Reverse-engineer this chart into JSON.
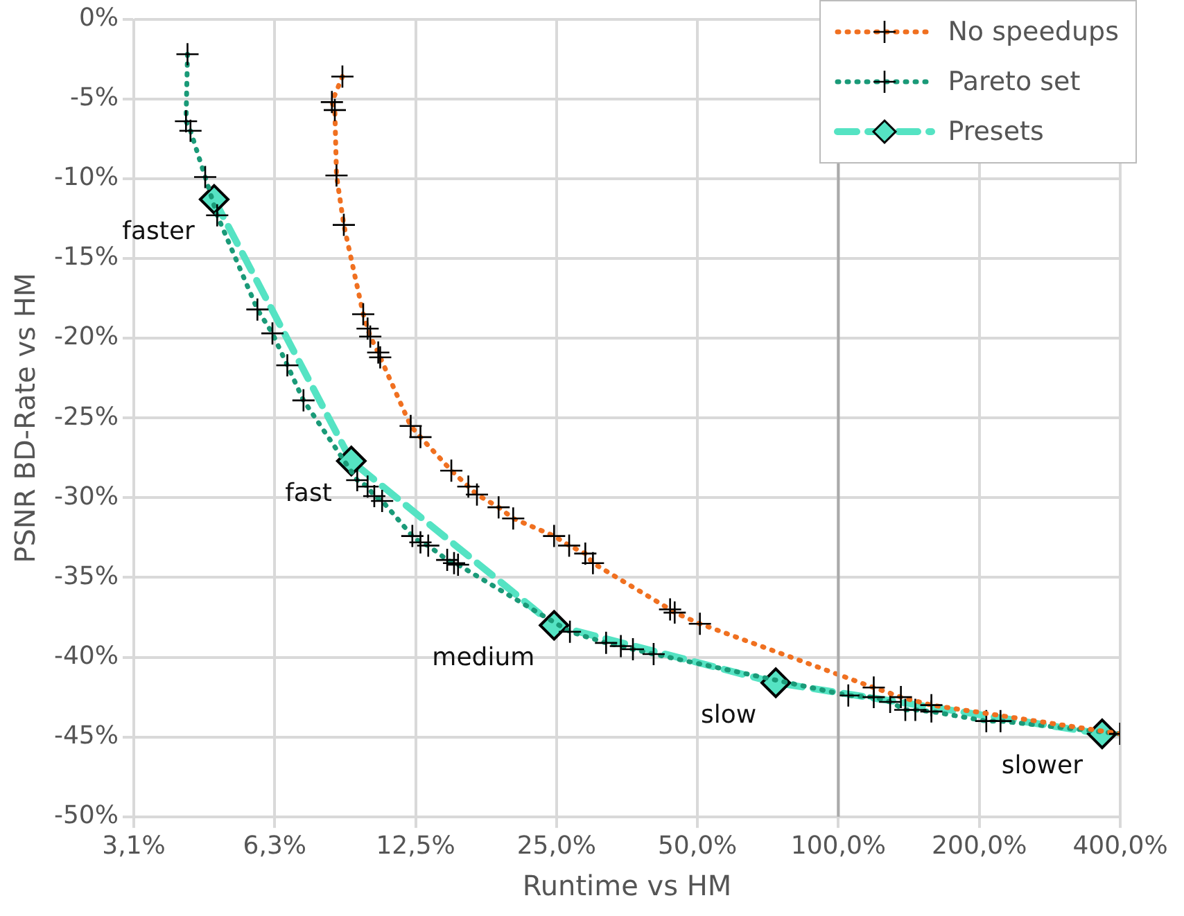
{
  "chart_data": {
    "type": "line",
    "xlabel": "Runtime vs HM",
    "ylabel": "PSNR BD-Rate vs HM",
    "log": "x",
    "grid": true,
    "legend": "top right",
    "xlim": [
      3.125,
      400
    ],
    "ylim": [
      -50,
      0
    ],
    "xticks": [
      {
        "value": 3.125,
        "label": "3,1%"
      },
      {
        "value": 6.25,
        "label": "6,3%"
      },
      {
        "value": 12.5,
        "label": "12,5%"
      },
      {
        "value": 25,
        "label": "25,0%"
      },
      {
        "value": 50,
        "label": "50,0%"
      },
      {
        "value": 100,
        "label": "100,0%"
      },
      {
        "value": 200,
        "label": "200,0%"
      },
      {
        "value": 400,
        "label": "400,0%"
      }
    ],
    "yticks": [
      {
        "value": 0,
        "label": "0%"
      },
      {
        "value": -5,
        "label": "-5%"
      },
      {
        "value": -10,
        "label": "-10%"
      },
      {
        "value": -15,
        "label": "-15%"
      },
      {
        "value": -20,
        "label": "-20%"
      },
      {
        "value": -25,
        "label": "-25%"
      },
      {
        "value": -30,
        "label": "-30%"
      },
      {
        "value": -35,
        "label": "-35%"
      },
      {
        "value": -40,
        "label": "-40%"
      },
      {
        "value": -45,
        "label": "-45%"
      },
      {
        "value": -50,
        "label": "-50%"
      }
    ],
    "series": [
      {
        "name": "No speedups",
        "color": "#f07020",
        "line_style": "dotted",
        "marker": "cross",
        "x": [
          8.72,
          8.28,
          8.4,
          8.47,
          8.78,
          9.66,
          9.87,
          10.0,
          10.4,
          10.5,
          12.2,
          12.8,
          14.9,
          16.2,
          16.9,
          18.8,
          20.2,
          24.7,
          26.6,
          28.8,
          29.9,
          43.7,
          44.7,
          50.6,
          119,
          136,
          158,
          400
        ],
        "values": [
          -3.6,
          -5.2,
          -5.7,
          -9.8,
          -12.9,
          -18.5,
          -19.4,
          -19.9,
          -20.9,
          -21.2,
          -25.5,
          -26.2,
          -28.3,
          -29.3,
          -29.8,
          -30.6,
          -31.3,
          -32.4,
          -33.0,
          -33.5,
          -34.1,
          -37.0,
          -37.2,
          -37.9,
          -41.9,
          -42.5,
          -43.0,
          -44.8
        ]
      },
      {
        "name": "Pareto set",
        "color": "#1a9a78",
        "line_style": "dotted",
        "marker": "cross",
        "x": [
          4.07,
          4.04,
          4.13,
          4.44,
          4.71,
          5.74,
          6.18,
          6.65,
          7.2,
          9.38,
          9.87,
          10.2,
          10.6,
          12.3,
          12.8,
          13.3,
          14.6,
          15.1,
          15.4,
          26.7,
          31.9,
          34.3,
          36.4,
          40.3,
          105,
          119,
          129,
          139,
          146,
          158,
          207,
          222,
          400
        ],
        "values": [
          -2.2,
          -6.4,
          -7.0,
          -9.9,
          -12.3,
          -18.2,
          -19.7,
          -21.7,
          -23.9,
          -28.9,
          -29.3,
          -29.9,
          -30.2,
          -32.4,
          -32.8,
          -33.0,
          -33.9,
          -34.1,
          -34.2,
          -38.4,
          -39.1,
          -39.3,
          -39.5,
          -39.8,
          -42.4,
          -42.5,
          -42.8,
          -43.3,
          -43.3,
          -43.4,
          -44.0,
          -44.0,
          -44.8
        ]
      },
      {
        "name": "Presets",
        "color": "#55e3c3",
        "line_style": "dashed",
        "marker": "diamond",
        "x": [
          4.64,
          9.11,
          24.7,
          73.5,
          366
        ],
        "values": [
          -11.3,
          -27.7,
          -38.0,
          -41.6,
          -44.8
        ]
      }
    ],
    "ref_lines": [
      {
        "axis": "x",
        "value": 100,
        "color": "#aaaaaa"
      }
    ],
    "annotations": [
      {
        "text": "faster",
        "x": 4.64,
        "y": -11.3
      },
      {
        "text": "fast",
        "x": 9.11,
        "y": -27.7
      },
      {
        "text": "medium",
        "x": 24.7,
        "y": -38.0
      },
      {
        "text": "slow",
        "x": 73.5,
        "y": -41.6
      },
      {
        "text": "slower",
        "x": 366,
        "y": -44.8
      }
    ]
  }
}
